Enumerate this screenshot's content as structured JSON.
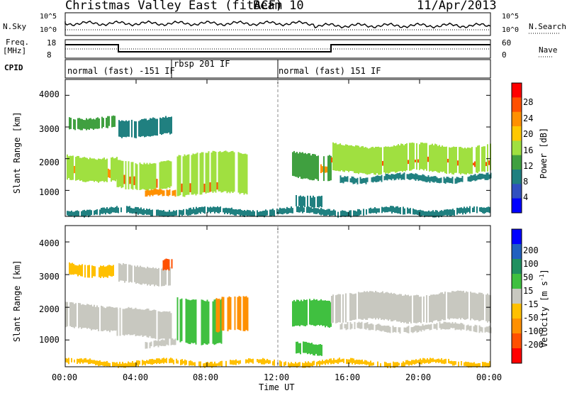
{
  "header": {
    "title": "Christmas Valley East (fitACF)",
    "beam": "Beam 10",
    "date": "11/Apr/2013"
  },
  "summary_panels": {
    "nsky_label": "N.Sky",
    "nsky_ticks": [
      "10^5",
      "10^0"
    ],
    "nsearch_label": "N.Search",
    "nsearch_ticks": [
      "10^5",
      "10^0"
    ],
    "freq_label": "Freq.",
    "freq_unit": "[MHz]",
    "freq_ticks": [
      "18",
      "8"
    ],
    "nave_label": "Nave",
    "nave_ticks": [
      "60",
      "0"
    ],
    "cpid_label": "CPID",
    "modes": [
      {
        "label": "normal (fast) -151 IF",
        "start": 0,
        "end": 6
      },
      {
        "label": "rbsp 201 IF",
        "start": 6,
        "end": 12
      },
      {
        "label": "normal (fast) 151 IF",
        "start": 12,
        "end": 24
      }
    ]
  },
  "chart_data": [
    {
      "type": "heatmap",
      "name": "power",
      "ylabel": "Slant Range [km]",
      "ylim": [
        180,
        4500
      ],
      "yticks": [
        "4000",
        "3000",
        "2000",
        "1000"
      ],
      "xlim": [
        0,
        24
      ],
      "colorbar_label": "Power [dB]",
      "colorbar_ticks": [
        "28",
        "24",
        "20",
        "16",
        "12",
        "8",
        "4"
      ],
      "colorbar_colors": [
        "#ff0000",
        "#ff5000",
        "#ff9000",
        "#ffc800",
        "#a0e040",
        "#40a040",
        "#208080",
        "#3050c0",
        "#0000ff"
      ],
      "bands": [
        {
          "t0": 0.0,
          "t1": 2.9,
          "r0": 1450,
          "r1": 1750,
          "lvl": 22
        },
        {
          "t0": 0.0,
          "t1": 2.9,
          "r0": 1300,
          "r1": 2100,
          "lvl": 12
        },
        {
          "t0": 0.2,
          "t1": 2.8,
          "r0": 2950,
          "r1": 3350,
          "lvl": 8
        },
        {
          "t0": 2.9,
          "t1": 6.0,
          "r0": 1150,
          "r1": 1450,
          "lvl": 24
        },
        {
          "t0": 2.9,
          "t1": 6.0,
          "r0": 1050,
          "r1": 1950,
          "lvl": 12
        },
        {
          "t0": 3.0,
          "t1": 6.0,
          "r0": 2700,
          "r1": 3300,
          "lvl": 6
        },
        {
          "t0": 4.5,
          "t1": 6.2,
          "r0": 750,
          "r1": 1000,
          "lvl": 22
        },
        {
          "t0": 6.3,
          "t1": 9.5,
          "r0": 950,
          "r1": 1300,
          "lvl": 24
        },
        {
          "t0": 6.3,
          "t1": 10.3,
          "r0": 850,
          "r1": 2200,
          "lvl": 12
        },
        {
          "t0": 12.8,
          "t1": 15.0,
          "r0": 1550,
          "r1": 1850,
          "lvl": 20
        },
        {
          "t0": 12.8,
          "t1": 15.0,
          "r0": 1350,
          "r1": 2200,
          "lvl": 8
        },
        {
          "t0": 13.0,
          "t1": 14.5,
          "r0": 500,
          "r1": 900,
          "lvl": 6
        },
        {
          "t0": 15.0,
          "t1": 24.0,
          "r0": 1800,
          "r1": 2000,
          "lvl": 24
        },
        {
          "t0": 15.0,
          "t1": 24.0,
          "r0": 1550,
          "r1": 2450,
          "lvl": 12
        },
        {
          "t0": 15.5,
          "t1": 24.0,
          "r0": 1250,
          "r1": 1500,
          "lvl": 6
        },
        {
          "t0": 0.0,
          "t1": 24.0,
          "r0": 200,
          "r1": 450,
          "lvl": 6
        }
      ]
    },
    {
      "type": "heatmap",
      "name": "velocity",
      "ylabel": "Slant Range [km]",
      "ylim": [
        180,
        4500
      ],
      "yticks": [
        "4000",
        "3000",
        "2000",
        "1000"
      ],
      "xlim": [
        0,
        24
      ],
      "xlabel": "Time UT",
      "xticks": [
        "00:00",
        "04:00",
        "08:00",
        "12:00",
        "16:00",
        "20:00",
        "00:00"
      ],
      "colorbar_label": "Velocity [m s",
      "colorbar_sup": "-1",
      "colorbar_label_end": "]",
      "colorbar_ticks": [
        "200",
        "100",
        "50",
        "15",
        "-15",
        "-50",
        "-100",
        "-200"
      ],
      "colorbar_colors": [
        "#0000ff",
        "#2060c0",
        "#209060",
        "#40c040",
        "#c8c8c0",
        "#ffc000",
        "#ff9000",
        "#ff5000",
        "#ff0000"
      ],
      "bands": [
        {
          "t0": 0.0,
          "t1": 2.9,
          "r0": 1300,
          "r1": 2100,
          "v": 0
        },
        {
          "t0": 0.2,
          "t1": 2.8,
          "r0": 2950,
          "r1": 3350,
          "v": -20
        },
        {
          "t0": 2.9,
          "t1": 6.0,
          "r0": 1050,
          "r1": 1950,
          "v": 0
        },
        {
          "t0": 3.0,
          "t1": 6.0,
          "r0": 2700,
          "r1": 3300,
          "v": 0
        },
        {
          "t0": 5.5,
          "t1": 6.0,
          "r0": 3100,
          "r1": 3500,
          "v": -120
        },
        {
          "t0": 4.5,
          "t1": 6.2,
          "r0": 750,
          "r1": 1000,
          "v": 0
        },
        {
          "t0": 6.3,
          "t1": 8.8,
          "r0": 900,
          "r1": 2300,
          "v": 30
        },
        {
          "t0": 8.5,
          "t1": 10.3,
          "r0": 1200,
          "r1": 2300,
          "v": -60
        },
        {
          "t0": 12.8,
          "t1": 15.0,
          "r0": 1350,
          "r1": 2200,
          "v": 30
        },
        {
          "t0": 13.0,
          "t1": 14.5,
          "r0": 500,
          "r1": 900,
          "v": 30
        },
        {
          "t0": 15.0,
          "t1": 24.0,
          "r0": 1550,
          "r1": 2450,
          "v": 0
        },
        {
          "t0": 15.5,
          "t1": 24.0,
          "r0": 1250,
          "r1": 1500,
          "v": 0
        },
        {
          "t0": 0.0,
          "t1": 24.0,
          "r0": 200,
          "r1": 400,
          "v": -40
        }
      ]
    }
  ]
}
